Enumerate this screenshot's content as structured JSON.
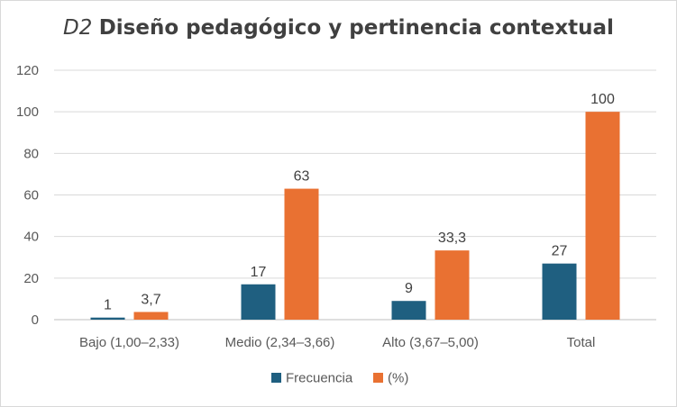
{
  "chart_data": {
    "type": "bar",
    "title_prefix": "D2",
    "title": "Diseño pedagógico y pertinencia contextual",
    "categories": [
      "Bajo (1,00–2,33)",
      "Medio (2,34–3,66)",
      "Alto (3,67–5,00)",
      "Total"
    ],
    "series": [
      {
        "name": "Frecuencia",
        "color": "#1f5f80",
        "values": [
          1,
          17,
          9,
          27
        ],
        "labels": [
          "1",
          "17",
          "9",
          "27"
        ]
      },
      {
        "name": "(%)",
        "color": "#e97132",
        "values": [
          3.7,
          63,
          33.3,
          100
        ],
        "labels": [
          "3,7",
          "63",
          "33,3",
          "100"
        ]
      }
    ],
    "ylim": [
      0,
      120
    ],
    "yticks": [
      0,
      20,
      40,
      60,
      80,
      100,
      120
    ],
    "grid": true,
    "legend": "bottom"
  }
}
